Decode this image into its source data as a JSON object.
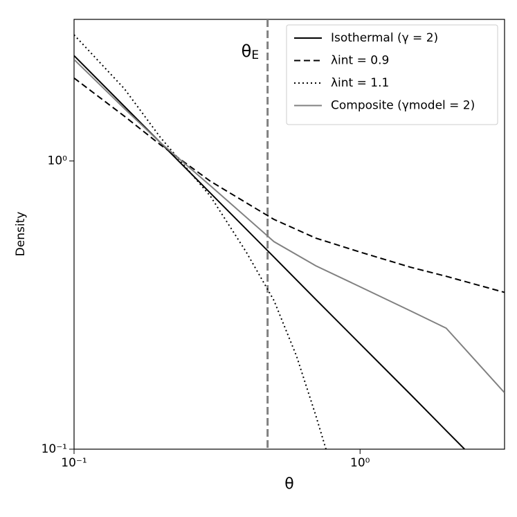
{
  "chart_data": {
    "type": "line",
    "xlabel": "θ",
    "ylabel": "Density",
    "xscale": "log",
    "yscale": "log",
    "xlim": [
      0.1,
      3.2
    ],
    "ylim": [
      0.1,
      3.1
    ],
    "xticks": [
      {
        "value": 0.1,
        "label": "10⁻¹"
      },
      {
        "value": 1,
        "label": "10⁰"
      }
    ],
    "yticks": [
      {
        "value": 0.1,
        "label": "10⁻¹"
      },
      {
        "value": 1,
        "label": "10⁰"
      }
    ],
    "legend": "upper right",
    "annotation": {
      "text": "θ",
      "subscript": "E",
      "x": 0.475,
      "color": "#808080"
    },
    "series": [
      {
        "name": "Isothermal (γ = 2)",
        "color": "#000000",
        "style": "solid",
        "x": [
          0.1,
          0.15,
          0.2,
          0.3,
          0.5,
          0.7,
          1,
          1.5,
          2,
          2.32
        ],
        "values": [
          2.32,
          1.547,
          1.16,
          0.773,
          0.464,
          0.331,
          0.232,
          0.155,
          0.116,
          0.1
        ]
      },
      {
        "name": "λint = 0.9",
        "color": "#000000",
        "style": "dashed",
        "x": [
          0.1,
          0.15,
          0.2,
          0.3,
          0.5,
          0.7,
          1,
          1.5,
          2,
          3.2
        ],
        "values": [
          1.94,
          1.43,
          1.14,
          0.85,
          0.627,
          0.54,
          0.483,
          0.428,
          0.398,
          0.35
        ]
      },
      {
        "name": "λint = 1.1",
        "color": "#000000",
        "style": "dotted",
        "x": [
          0.1,
          0.15,
          0.2,
          0.3,
          0.4,
          0.5,
          0.6,
          0.7,
          0.76
        ],
        "values": [
          2.74,
          1.78,
          1.21,
          0.754,
          0.483,
          0.328,
          0.21,
          0.131,
          0.1
        ]
      },
      {
        "name": "Composite (γmodel = 2)",
        "color": "#808080",
        "style": "solid",
        "x": [
          0.1,
          0.15,
          0.2,
          0.3,
          0.5,
          0.7,
          1,
          1.5,
          2,
          3.2
        ],
        "values": [
          2.25,
          1.52,
          1.16,
          0.82,
          0.525,
          0.433,
          0.366,
          0.302,
          0.263,
          0.157
        ]
      }
    ]
  }
}
